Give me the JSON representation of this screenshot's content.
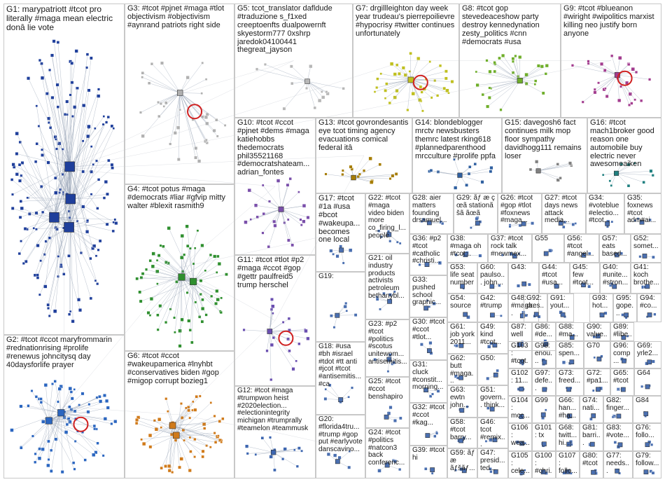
{
  "groups": [
    {
      "id": "G1",
      "label": "G1: marypatriott #tcot pro literally #maga mean electric donâ lie vote"
    },
    {
      "id": "G2",
      "label": "G2: #tcot #ccot maryfrommarin #rednationrising #prolife #renewus johncitysq day 40daysforlife prayer"
    },
    {
      "id": "G3",
      "label": "G3: #tcot #pjnet #maga #tlot objectivism #objectivism #aynrand patriots right side"
    },
    {
      "id": "G4",
      "label": "G4: #tcot potus #maga #democrats #liar #gfvip mitty walter #blexit rasmith9"
    },
    {
      "id": "G5",
      "label": "G5: tcot_translator dafldude #traduzione s_f1xed creeptoenfts dualpowernft skyestorm777 0xshrp jaredok04100441 thegreat_jayson"
    },
    {
      "id": "G6",
      "label": "G6: #tcot #ccot #wakeupamerica #lnyhbt #conservatives biden #gop #migop corrupt bozieg1"
    },
    {
      "id": "G7",
      "label": "G7: drgillleighton day week year trudeau's pierrepoilievre #hypocrisy #twitter continues unfortunately"
    },
    {
      "id": "G8",
      "label": "G8: #tcot gop stevedeaceshow party destroy kennedynation zesty_politics #cnn #democrats #usa"
    },
    {
      "id": "G9",
      "label": "G9: #tcot #blueanon #wiright #wipolitics marxist killing neo justify born anyone"
    },
    {
      "id": "G10",
      "label": "G10: #tcot #ccot #pjnet #dems #maga katiehobbs thedemocrats phil35521168 #democratshateam... adrian_fontes"
    },
    {
      "id": "G11",
      "label": "G11: #tcot #tlot #p2 #maga #ccot #gop #gettr paulfreid5 trump herschel"
    },
    {
      "id": "G12",
      "label": "G12: #tcot #maga #trumpwon heist #2020election... #electionintegrity michigan #trumprally #teamelon #teammusk"
    },
    {
      "id": "G13",
      "label": "G13: #tcot govrondesantis eye tcot timing agency evacuations comical federal itâ"
    },
    {
      "id": "G14",
      "label": "G14: blondeblogger mrctv newsbusters themrc latest rking618 #plannedparenthood mrcculture #prolife ppfa"
    },
    {
      "id": "G15",
      "label": "G15: davegosh6 fact continues milk mop floor sympathy davidhogg111 remains loser"
    },
    {
      "id": "G16",
      "label": "G16: #tcot mach1broker good reason one automobile buy electric never awesomeaiken"
    },
    {
      "id": "G17",
      "label": "G17: #tcot #1a #usa #bcot #wakeupa... becomes one local"
    },
    {
      "id": "G18",
      "label": "G18: #usa #bh #israel #tdot #tt anti #jcot #tcot #antisemitis... #ca"
    },
    {
      "id": "G19",
      "label": "G19:"
    },
    {
      "id": "G20",
      "label": "G20: #florida4tru... #trump #gop put #earlyvote danscavino..."
    },
    {
      "id": "G21",
      "label": "G21: oil industry products activists petroleum bethanybl..."
    },
    {
      "id": "G22",
      "label": "G22: #tcot #maga video biden more co_firing_l... people"
    },
    {
      "id": "G23",
      "label": "G23: #p2 #tcot #politics #scotus unitewom... antisemitis..."
    },
    {
      "id": "G24",
      "label": "G24: #tcot #politics #natcon3 back conferenc..."
    },
    {
      "id": "G25",
      "label": "G25: #tcot #ccot benshapiro"
    },
    {
      "id": "G26",
      "label": "G26: #tcot #gop #tlot #foxnews #maga..."
    },
    {
      "id": "G27",
      "label": "G27: #tcot days news attack media..."
    },
    {
      "id": "G28",
      "label": "G28: aier matters founding drsamuel..."
    },
    {
      "id": "G29",
      "label": "G29: ãƒ æ ç œã stationã šã ãœã"
    },
    {
      "id": "G30",
      "label": "G30: #tcot #ccot #tlot..."
    },
    {
      "id": "G31",
      "label": "G31: cluck #constit... morning..."
    },
    {
      "id": "G32",
      "label": "G32: #tcot #ccot #kag..."
    },
    {
      "id": "G33",
      "label": "G33: pushed school graphic..."
    },
    {
      "id": "G34",
      "label": "G34: #voteblue #electio... #tcot..."
    },
    {
      "id": "G35",
      "label": "G35: foxnews #tcot adm#ai..."
    },
    {
      "id": "G36",
      "label": "G36: #p2 #tcot #catholic #christi..."
    },
    {
      "id": "G37",
      "label": "G37: #tcot rock talk #newmex..."
    },
    {
      "id": "G38",
      "label": "G38: #maga oh #tcot..."
    },
    {
      "id": "G39",
      "label": "G39: #tcot hi"
    },
    {
      "id": "G40",
      "label": "G40: #unite... #stron..."
    },
    {
      "id": "G41",
      "label": "G41: koch brothe..."
    },
    {
      "id": "G42",
      "label": "G42: #trump"
    },
    {
      "id": "G43",
      "label": "G43:"
    },
    {
      "id": "G44",
      "label": "G44: #tcot #usa..."
    },
    {
      "id": "G45",
      "label": "G45: few #tcot..."
    },
    {
      "id": "G46",
      "label": "G46: tcot #remix..."
    },
    {
      "id": "G47",
      "label": "G47: presid... ted..."
    },
    {
      "id": "G48",
      "label": "G48: #maga..."
    },
    {
      "id": "G49",
      "label": "G49: kind #tcot..."
    },
    {
      "id": "G50",
      "label": "G50:"
    },
    {
      "id": "G51",
      "label": "G51: govern... think..."
    },
    {
      "id": "G52",
      "label": "G52: somet..."
    },
    {
      "id": "G53",
      "label": "G53: life seat number"
    },
    {
      "id": "G54",
      "label": "G54: source"
    },
    {
      "id": "G55",
      "label": "G55"
    },
    {
      "id": "G56",
      "label": "G56: #tcot #angel..."
    },
    {
      "id": "G57",
      "label": "G57: eats based..."
    },
    {
      "id": "G58",
      "label": "G58: #tcot barry..."
    },
    {
      "id": "G59",
      "label": "G59: ãƒ æ ãƒšãƒ..."
    },
    {
      "id": "G60",
      "label": "G60: paulso... john..."
    },
    {
      "id": "G61",
      "label": "G61: job york 2011..."
    },
    {
      "id": "G62",
      "label": "G62: butt #maga..."
    },
    {
      "id": "G63",
      "label": "G63: ewtn john..."
    },
    {
      "id": "G64",
      "label": "G64"
    },
    {
      "id": "G65",
      "label": "G65: #tcot"
    },
    {
      "id": "G66",
      "label": "G66: han... #ha..."
    },
    {
      "id": "G67",
      "label": "G67: follo... #h..."
    },
    {
      "id": "G68",
      "label": "G68: twitt... hi..."
    },
    {
      "id": "G69",
      "label": "G69: yrle2..."
    },
    {
      "id": "G70",
      "label": "G70"
    },
    {
      "id": "G71",
      "label": "G71: alex..."
    },
    {
      "id": "G72",
      "label": "G72: #pa1..."
    },
    {
      "id": "G73",
      "label": "G73: freed..."
    },
    {
      "id": "G74",
      "label": "G74: nati..."
    },
    {
      "id": "G75",
      "label": "G75: heirs..."
    },
    {
      "id": "G76",
      "label": "G76: follo..."
    },
    {
      "id": "G77",
      "label": "G77: needs..."
    },
    {
      "id": "G78",
      "label": "G78: #tcot..."
    },
    {
      "id": "G79",
      "label": "G79: follow..."
    },
    {
      "id": "G80",
      "label": "G80: #tcot"
    },
    {
      "id": "G81",
      "label": "G81: barri..."
    },
    {
      "id": "G82",
      "label": "G82: finger..."
    },
    {
      "id": "G83",
      "label": "G83: #vote..."
    },
    {
      "id": "G84",
      "label": "G84"
    },
    {
      "id": "G85",
      "label": "G85: spen..."
    },
    {
      "id": "G86",
      "label": "G86: #de..."
    },
    {
      "id": "G87",
      "label": "G87: well"
    },
    {
      "id": "G88",
      "label": "G88: #ma..."
    },
    {
      "id": "G89",
      "label": "G89: #libe..."
    },
    {
      "id": "G90",
      "label": "G90: value..."
    },
    {
      "id": "G91",
      "label": "G91: yout..."
    },
    {
      "id": "G92",
      "label": "G92: dres..."
    },
    {
      "id": "G93",
      "label": "G93: hot..."
    },
    {
      "id": "G94",
      "label": "G94: #co..."
    },
    {
      "id": "G95",
      "label": "G95: gope..."
    },
    {
      "id": "G96",
      "label": "G96: comp..."
    },
    {
      "id": "G97",
      "label": "G97: defe..."
    },
    {
      "id": "G98",
      "label": "G98: enou..."
    },
    {
      "id": "G99",
      "label": "G99"
    },
    {
      "id": "G100",
      "label": "G100: #chri..."
    },
    {
      "id": "G101",
      "label": "G101: tx"
    },
    {
      "id": "G102",
      "label": "G102: 11..."
    },
    {
      "id": "G103",
      "label": "G103: #tcot..."
    },
    {
      "id": "G104",
      "label": "G104: mcc..."
    },
    {
      "id": "G105",
      "label": "G105: cele..."
    },
    {
      "id": "G106",
      "label": "G106: wea..."
    },
    {
      "id": "G107",
      "label": "G107: follo..."
    },
    {
      "id": "G108",
      "label": "G108: follo..."
    }
  ]
}
